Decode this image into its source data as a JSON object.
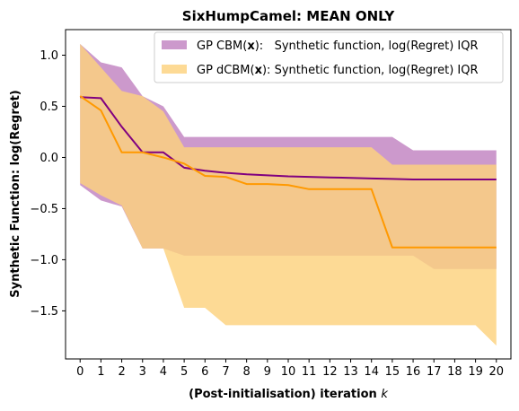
{
  "chart_data": {
    "type": "line",
    "title": "SixHumpCamel: MEAN ONLY",
    "xlabel": "(Post-initialisation) iteration",
    "xlabel_var": "k",
    "ylabel": "Synthetic Function: log(Regret)",
    "xlim": [
      -0.7,
      20.7
    ],
    "ylim": [
      -1.97,
      1.25
    ],
    "xticks": [
      0,
      1,
      2,
      3,
      4,
      5,
      6,
      7,
      8,
      9,
      10,
      11,
      12,
      13,
      14,
      15,
      16,
      17,
      18,
      19,
      20
    ],
    "yticks": [
      -1.5,
      -1.0,
      -0.5,
      0.0,
      0.5,
      1.0
    ],
    "ytick_labels": [
      "−1.5",
      "−1.0",
      "−0.5",
      "0.0",
      "0.5",
      "1.0"
    ],
    "grid": false,
    "legend_position": "upper right",
    "x": [
      0,
      1,
      2,
      3,
      4,
      5,
      6,
      7,
      8,
      9,
      10,
      11,
      12,
      13,
      14,
      15,
      16,
      17,
      18,
      19,
      20
    ],
    "series": [
      {
        "name_prefix": "GP CBM(",
        "name_bold": "x",
        "name_suffix": "):   Synthetic function, log(Regret) IQR",
        "line_color": "#800080",
        "band_color": "#cc99cc",
        "band_opacity": 1.0,
        "median": [
          0.59,
          0.58,
          0.3,
          0.05,
          0.05,
          -0.1,
          -0.13,
          -0.15,
          -0.165,
          -0.175,
          -0.185,
          -0.19,
          -0.195,
          -0.2,
          -0.205,
          -0.21,
          -0.215,
          -0.215,
          -0.215,
          -0.215,
          -0.215
        ],
        "upper": [
          1.11,
          0.93,
          0.88,
          0.6,
          0.5,
          0.2,
          0.2,
          0.2,
          0.2,
          0.2,
          0.2,
          0.2,
          0.2,
          0.2,
          0.2,
          0.2,
          0.07,
          0.07,
          0.07,
          0.07,
          0.07
        ],
        "lower": [
          -0.27,
          -0.42,
          -0.48,
          -0.89,
          -0.89,
          -0.96,
          -0.96,
          -0.96,
          -0.96,
          -0.96,
          -0.96,
          -0.96,
          -0.96,
          -0.96,
          -0.96,
          -0.96,
          -0.96,
          -1.09,
          -1.09,
          -1.09,
          -1.09
        ]
      },
      {
        "name_prefix": "GP dCBM(",
        "name_bold": "x",
        "name_suffix": "): Synthetic function, log(Regret) IQR",
        "line_color": "#ff9900",
        "band_color": "#fdd27e",
        "band_opacity": 0.82,
        "median": [
          0.6,
          0.46,
          0.05,
          0.05,
          0.0,
          -0.06,
          -0.18,
          -0.19,
          -0.26,
          -0.26,
          -0.27,
          -0.31,
          -0.31,
          -0.31,
          -0.31,
          -0.88,
          -0.88,
          -0.88,
          -0.88,
          -0.88,
          -0.88
        ],
        "upper": [
          1.11,
          0.88,
          0.65,
          0.6,
          0.45,
          0.1,
          0.1,
          0.1,
          0.1,
          0.1,
          0.1,
          0.1,
          0.1,
          0.1,
          0.1,
          -0.07,
          -0.07,
          -0.07,
          -0.07,
          -0.07,
          -0.07
        ],
        "lower": [
          -0.25,
          -0.37,
          -0.47,
          -0.89,
          -0.89,
          -1.47,
          -1.47,
          -1.64,
          -1.64,
          -1.64,
          -1.64,
          -1.64,
          -1.64,
          -1.64,
          -1.64,
          -1.64,
          -1.64,
          -1.64,
          -1.64,
          -1.64,
          -1.84
        ]
      }
    ]
  }
}
